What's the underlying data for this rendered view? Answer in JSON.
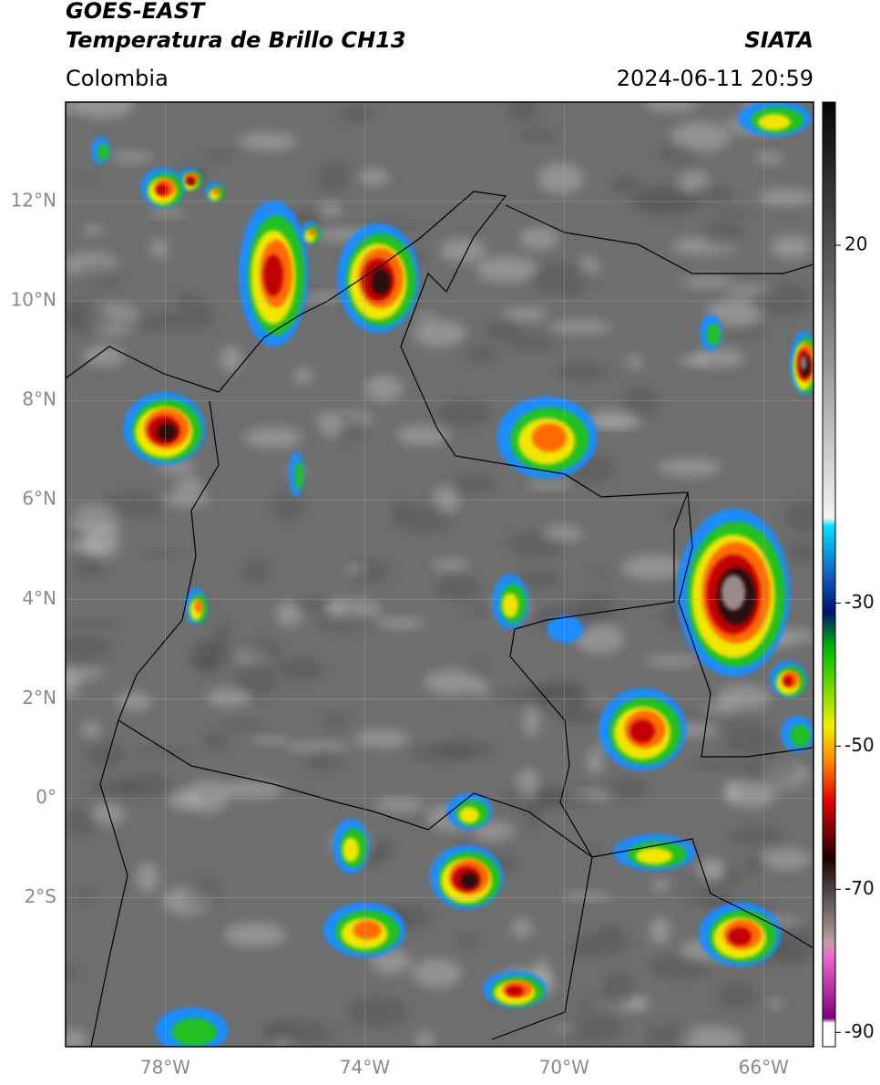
{
  "header": {
    "title": "GOES-EAST",
    "subtitle": "Temperatura de Brillo CH13",
    "region": "Colombia",
    "source": "SIATA",
    "datetime": "2024-06-11 20:59"
  },
  "map": {
    "xlim": [
      -80,
      -65
    ],
    "ylim": [
      -5,
      14
    ],
    "yticks": [
      {
        "value": 12,
        "label": "12°N"
      },
      {
        "value": 10,
        "label": "10°N"
      },
      {
        "value": 8,
        "label": "8°N"
      },
      {
        "value": 6,
        "label": "6°N"
      },
      {
        "value": 4,
        "label": "4°N"
      },
      {
        "value": 2,
        "label": "2°N"
      },
      {
        "value": 0,
        "label": "0°"
      },
      {
        "value": -2,
        "label": "2°S"
      }
    ],
    "xticks": [
      {
        "value": -78,
        "label": "78°W"
      },
      {
        "value": -74,
        "label": "74°W"
      },
      {
        "value": -70,
        "label": "70°W"
      },
      {
        "value": -66,
        "label": "66°W"
      }
    ]
  },
  "colorbar": {
    "range": [
      -92,
      40
    ],
    "ticks": [
      20,
      -30,
      -50,
      -70,
      -90
    ]
  }
}
